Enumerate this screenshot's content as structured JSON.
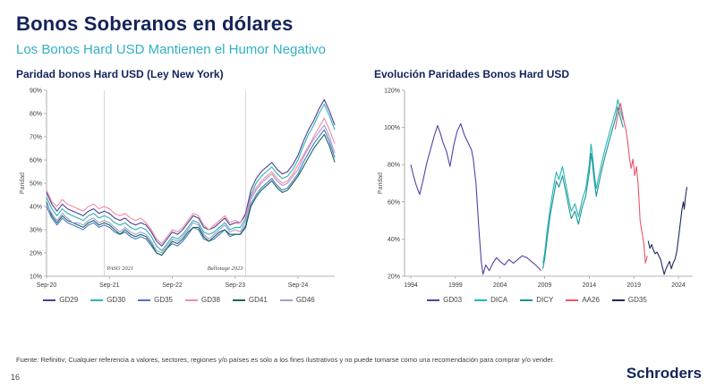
{
  "header": {
    "title": "Bonos Soberanos en dólares",
    "subtitle": "Los Bonos Hard USD Mantienen el Humor Negativo"
  },
  "footer": {
    "source": "Fuente: Refinitiv; Cualquier referencia a valores, sectores, regiones y/o países es solo a los fines ilustrativos y no puede tomarse como una recomendación para comprar y/o vender.",
    "page_number": "16",
    "brand": "Schroders"
  },
  "chart_data": [
    {
      "type": "line",
      "title": "Paridad bonos Hard USD (Ley New York)",
      "ylabel": "Paridad",
      "x_mode": "index",
      "xlim": [
        0,
        55
      ],
      "ylim": [
        10,
        90
      ],
      "yticks": [
        10,
        20,
        30,
        40,
        50,
        60,
        70,
        80,
        90
      ],
      "xticks": [
        "Sep-20",
        "Sep-21",
        "Sep-22",
        "Sep-23",
        "Sep-24"
      ],
      "xtick_pos": [
        0,
        12,
        24,
        36,
        48
      ],
      "grid": false,
      "legend_position": "bottom",
      "annotations": [
        {
          "x": 11,
          "label": "PASO 2021",
          "align": "start"
        },
        {
          "x": 38,
          "label": "Ballotage 2023",
          "align": "end"
        }
      ],
      "series": [
        {
          "name": "GD29",
          "color": "#4f3d9e",
          "values": [
            46,
            41,
            38,
            41,
            39,
            38,
            37,
            36,
            38,
            39,
            37,
            38,
            37,
            35,
            34,
            35,
            33,
            32,
            33,
            32,
            29,
            25,
            23,
            26,
            29,
            28,
            30,
            33,
            36,
            35,
            31,
            30,
            31,
            33,
            35,
            32,
            33,
            33,
            37,
            47,
            52,
            55,
            57,
            59,
            56,
            54,
            55,
            58,
            62,
            68,
            73,
            77,
            82,
            86,
            81,
            75
          ]
        },
        {
          "name": "GD30",
          "color": "#2cb4ae",
          "values": [
            44,
            39,
            36,
            39,
            37,
            36,
            35,
            34,
            36,
            37,
            35,
            36,
            35,
            33,
            32,
            33,
            31,
            30,
            31,
            30,
            27,
            23,
            21,
            24,
            27,
            26,
            28,
            31,
            34,
            33,
            29,
            28,
            29,
            31,
            33,
            30,
            31,
            31,
            35,
            45,
            50,
            53,
            55,
            57,
            54,
            52,
            53,
            56,
            60,
            66,
            71,
            75,
            80,
            84,
            79,
            73
          ]
        },
        {
          "name": "GD35",
          "color": "#4a74d4",
          "values": [
            40,
            35,
            32,
            35,
            33,
            32,
            31,
            30,
            32,
            33,
            31,
            32,
            31,
            29,
            28,
            29,
            27,
            26,
            27,
            26,
            23,
            20,
            19,
            22,
            24,
            23,
            25,
            28,
            31,
            30,
            26,
            25,
            26,
            28,
            30,
            27,
            28,
            28,
            32,
            41,
            45,
            48,
            50,
            52,
            49,
            47,
            48,
            51,
            54,
            59,
            63,
            67,
            70,
            73,
            68,
            61
          ]
        },
        {
          "name": "GD38",
          "color": "#f28ba0",
          "values": [
            47,
            42,
            40,
            43,
            41,
            40,
            39,
            38,
            40,
            41,
            39,
            40,
            39,
            37,
            36,
            37,
            35,
            34,
            35,
            33,
            30,
            26,
            24,
            27,
            30,
            29,
            31,
            34,
            37,
            36,
            32,
            30,
            32,
            34,
            36,
            33,
            34,
            33,
            36,
            44,
            48,
            51,
            53,
            55,
            52,
            50,
            51,
            54,
            58,
            62,
            66,
            70,
            74,
            78,
            73,
            67
          ]
        },
        {
          "name": "GD41",
          "color": "#156a4e",
          "values": [
            42,
            36,
            33,
            36,
            34,
            33,
            32,
            31,
            33,
            34,
            32,
            33,
            32,
            30,
            28,
            30,
            28,
            27,
            28,
            27,
            24,
            20,
            19,
            22,
            25,
            24,
            26,
            29,
            31,
            31,
            27,
            25,
            27,
            29,
            30,
            28,
            28,
            28,
            31,
            40,
            44,
            47,
            49,
            51,
            48,
            46,
            47,
            50,
            53,
            57,
            61,
            65,
            68,
            71,
            66,
            59
          ]
        },
        {
          "name": "GD46",
          "color": "#a89bd6",
          "values": [
            41,
            37,
            34,
            37,
            35,
            33,
            33,
            32,
            34,
            35,
            33,
            34,
            33,
            31,
            29,
            31,
            29,
            28,
            29,
            28,
            25,
            21,
            20,
            23,
            26,
            25,
            27,
            30,
            33,
            32,
            28,
            26,
            28,
            30,
            32,
            29,
            30,
            29,
            34,
            43,
            47,
            50,
            52,
            54,
            51,
            49,
            50,
            53,
            56,
            61,
            65,
            69,
            72,
            75,
            70,
            63
          ]
        }
      ]
    },
    {
      "type": "line",
      "title": "Evolución Paridades Bonos Hard USD",
      "ylabel": "Paridad",
      "x_mode": "xy",
      "xlim": [
        1993.3,
        2025.6
      ],
      "ylim": [
        20,
        120
      ],
      "yticks": [
        20,
        40,
        60,
        80,
        100,
        120
      ],
      "xticks": [
        "1994",
        "1999",
        "2004",
        "2009",
        "2014",
        "2019",
        "2024"
      ],
      "xtick_pos": [
        1994,
        1999,
        2004,
        2009,
        2014,
        2019,
        2024
      ],
      "grid": false,
      "legend_position": "bottom",
      "annotations": [],
      "series": [
        {
          "name": "GD03",
          "color": "#5a3da6",
          "points": [
            [
              1994,
              80
            ],
            [
              1994.3,
              74
            ],
            [
              1994.6,
              69
            ],
            [
              1995,
              64
            ],
            [
              1995.4,
              72
            ],
            [
              1995.8,
              81
            ],
            [
              1996.2,
              88
            ],
            [
              1996.6,
              95
            ],
            [
              1997,
              101
            ],
            [
              1997.3,
              97
            ],
            [
              1997.6,
              92
            ],
            [
              1998,
              87
            ],
            [
              1998.4,
              79
            ],
            [
              1998.8,
              90
            ],
            [
              1999.2,
              98
            ],
            [
              1999.6,
              102
            ],
            [
              2000,
              96
            ],
            [
              2000.4,
              92
            ],
            [
              2000.8,
              88
            ],
            [
              2001,
              83
            ],
            [
              2001.3,
              70
            ],
            [
              2001.6,
              48
            ],
            [
              2001.9,
              28
            ],
            [
              2002.1,
              21
            ],
            [
              2002.4,
              26
            ],
            [
              2002.8,
              23
            ],
            [
              2003.2,
              27
            ],
            [
              2003.6,
              30
            ],
            [
              2004,
              28
            ],
            [
              2004.5,
              26
            ],
            [
              2005,
              29
            ],
            [
              2005.5,
              27
            ],
            [
              2006,
              29
            ],
            [
              2006.5,
              31
            ],
            [
              2007,
              30
            ],
            [
              2007.5,
              28
            ],
            [
              2008,
              26
            ],
            [
              2008.6,
              23
            ]
          ]
        },
        {
          "name": "DICA",
          "color": "#23b5b2",
          "points": [
            [
              2008.8,
              27
            ],
            [
              2009,
              32
            ],
            [
              2009.3,
              45
            ],
            [
              2009.6,
              56
            ],
            [
              2010,
              68
            ],
            [
              2010.3,
              76
            ],
            [
              2010.6,
              72
            ],
            [
              2011,
              79
            ],
            [
              2011.4,
              69
            ],
            [
              2011.8,
              59
            ],
            [
              2012,
              55
            ],
            [
              2012.4,
              59
            ],
            [
              2012.8,
              52
            ],
            [
              2013.2,
              61
            ],
            [
              2013.6,
              67
            ],
            [
              2014,
              80
            ],
            [
              2014.2,
              91
            ],
            [
              2014.4,
              84
            ],
            [
              2014.6,
              74
            ],
            [
              2014.8,
              67
            ],
            [
              2015,
              72
            ],
            [
              2015.4,
              81
            ],
            [
              2015.8,
              89
            ],
            [
              2016.2,
              96
            ],
            [
              2016.6,
              103
            ],
            [
              2017,
              110
            ],
            [
              2017.2,
              115
            ],
            [
              2017.5,
              109
            ],
            [
              2017.8,
              104
            ]
          ]
        },
        {
          "name": "DICY",
          "color": "#16929a",
          "points": [
            [
              2008.8,
              24
            ],
            [
              2009,
              29
            ],
            [
              2009.3,
              41
            ],
            [
              2009.6,
              52
            ],
            [
              2010,
              63
            ],
            [
              2010.3,
              71
            ],
            [
              2010.6,
              68
            ],
            [
              2011,
              74
            ],
            [
              2011.4,
              65
            ],
            [
              2011.8,
              55
            ],
            [
              2012,
              51
            ],
            [
              2012.4,
              55
            ],
            [
              2012.8,
              48
            ],
            [
              2013.2,
              57
            ],
            [
              2013.6,
              63
            ],
            [
              2014,
              76
            ],
            [
              2014.2,
              86
            ],
            [
              2014.4,
              79
            ],
            [
              2014.6,
              70
            ],
            [
              2014.8,
              63
            ],
            [
              2015,
              68
            ],
            [
              2015.4,
              77
            ],
            [
              2015.8,
              85
            ],
            [
              2016.2,
              92
            ],
            [
              2016.6,
              99
            ],
            [
              2017,
              106
            ],
            [
              2017.2,
              111
            ],
            [
              2017.5,
              105
            ],
            [
              2017.8,
              100
            ]
          ]
        },
        {
          "name": "AA26",
          "color": "#e8566a",
          "points": [
            [
              2016.9,
              99
            ],
            [
              2017.1,
              104
            ],
            [
              2017.3,
              109
            ],
            [
              2017.5,
              113
            ],
            [
              2017.7,
              108
            ],
            [
              2017.9,
              103
            ],
            [
              2018.1,
              99
            ],
            [
              2018.3,
              93
            ],
            [
              2018.5,
              84
            ],
            [
              2018.7,
              78
            ],
            [
              2018.9,
              83
            ],
            [
              2019.1,
              74
            ],
            [
              2019.3,
              79
            ],
            [
              2019.5,
              68
            ],
            [
              2019.7,
              50
            ],
            [
              2019.9,
              44
            ],
            [
              2020.1,
              38
            ],
            [
              2020.3,
              27
            ],
            [
              2020.5,
              31
            ]
          ]
        },
        {
          "name": "GD35",
          "color": "#1b2b5e",
          "points": [
            [
              2020.6,
              39
            ],
            [
              2020.8,
              35
            ],
            [
              2021,
              37
            ],
            [
              2021.2,
              34
            ],
            [
              2021.4,
              32
            ],
            [
              2021.6,
              33
            ],
            [
              2021.8,
              31
            ],
            [
              2022,
              29
            ],
            [
              2022.2,
              25
            ],
            [
              2022.4,
              21
            ],
            [
              2022.6,
              24
            ],
            [
              2022.8,
              26
            ],
            [
              2023,
              28
            ],
            [
              2023.2,
              24
            ],
            [
              2023.4,
              27
            ],
            [
              2023.6,
              29
            ],
            [
              2023.8,
              33
            ],
            [
              2024,
              40
            ],
            [
              2024.2,
              48
            ],
            [
              2024.4,
              56
            ],
            [
              2024.55,
              60
            ],
            [
              2024.65,
              56
            ],
            [
              2024.8,
              63
            ],
            [
              2024.95,
              68
            ]
          ]
        }
      ]
    }
  ]
}
